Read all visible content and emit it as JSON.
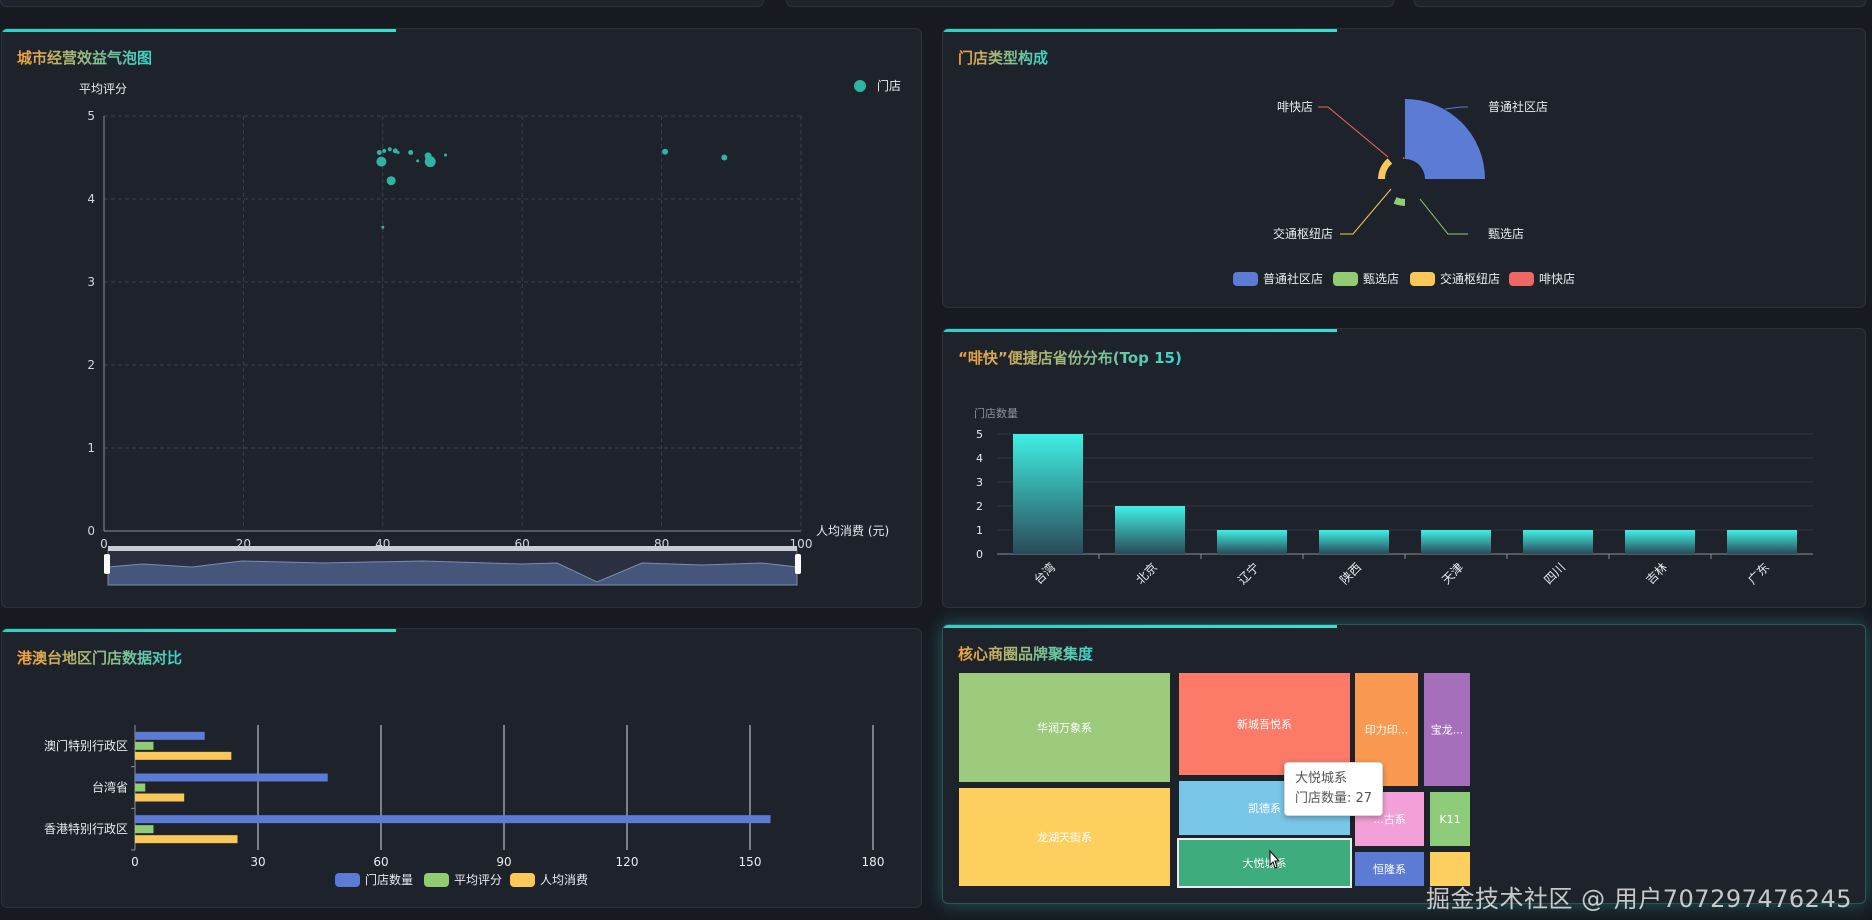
{
  "panels": {
    "bubble": {
      "title": "城市经营效益气泡图"
    },
    "donut": {
      "title": "门店类型构成"
    },
    "bar": {
      "title": "“啡快”便捷店省份分布(Top 15)"
    },
    "hbar": {
      "title": "港澳台地区门店数据对比"
    },
    "treemap": {
      "title": "核心商圈品牌聚集度"
    }
  },
  "colors": {
    "teal": "#2fb4a4",
    "blue": "#5b7bd5",
    "green": "#91cc75",
    "yellow": "#fac858",
    "red": "#ee6666",
    "accent": "#36d6c8"
  },
  "chart_data": [
    {
      "type": "scatter",
      "ylabel": "平均评分",
      "xlabel": "人均消费 (元)",
      "legend": [
        "门店"
      ],
      "legend_position": "top-right",
      "xlim": [
        0,
        100
      ],
      "ylim": [
        0,
        5
      ],
      "xticks": [
        0,
        20,
        40,
        60,
        80,
        100
      ],
      "yticks": [
        0,
        1,
        2,
        3,
        4,
        5
      ],
      "grid": true,
      "points": [
        {
          "x": 39.5,
          "y": 4.56,
          "size": 5
        },
        {
          "x": 40.2,
          "y": 4.58,
          "size": 4
        },
        {
          "x": 39.8,
          "y": 4.45,
          "size": 10
        },
        {
          "x": 41,
          "y": 4.6,
          "size": 4
        },
        {
          "x": 41.8,
          "y": 4.58,
          "size": 5
        },
        {
          "x": 42.2,
          "y": 4.56,
          "size": 3
        },
        {
          "x": 44,
          "y": 4.56,
          "size": 5
        },
        {
          "x": 45,
          "y": 4.46,
          "size": 3
        },
        {
          "x": 46.5,
          "y": 4.52,
          "size": 7
        },
        {
          "x": 46.8,
          "y": 4.45,
          "size": 11
        },
        {
          "x": 49,
          "y": 4.53,
          "size": 3
        },
        {
          "x": 41.2,
          "y": 4.22,
          "size": 9
        },
        {
          "x": 40,
          "y": 3.66,
          "size": 3
        },
        {
          "x": 80.5,
          "y": 4.57,
          "size": 6
        },
        {
          "x": 89,
          "y": 4.5,
          "size": 6
        }
      ]
    },
    {
      "type": "pie",
      "subtype": "rose",
      "slices": [
        {
          "name": "普通社区店",
          "value": 100
        },
        {
          "name": "甄选店",
          "value": 3
        },
        {
          "name": "交通枢纽店",
          "value": 2
        },
        {
          "name": "啡快店",
          "value": 1
        }
      ],
      "legend_position": "bottom"
    },
    {
      "type": "bar",
      "ylabel": "门店数量",
      "ylim": [
        0,
        5
      ],
      "yticks": [
        0,
        1,
        2,
        3,
        4,
        5
      ],
      "categories": [
        "台湾",
        "北京",
        "辽宁",
        "陕西",
        "天津",
        "四川",
        "吉林",
        "广东"
      ],
      "values": [
        5,
        2,
        1,
        1,
        1,
        1,
        1,
        1
      ]
    },
    {
      "type": "bar",
      "orientation": "horizontal",
      "categories": [
        "香港特别行政区",
        "台湾省",
        "澳门特别行政区"
      ],
      "xlim": [
        0,
        180
      ],
      "xticks": [
        0,
        30,
        60,
        90,
        120,
        150,
        180
      ],
      "series": [
        {
          "name": "门店数量",
          "values": [
            155,
            47,
            17
          ]
        },
        {
          "name": "平均评分",
          "values": [
            4.5,
            2.5,
            4.5
          ]
        },
        {
          "name": "人均消费",
          "values": [
            25,
            12,
            23.5
          ]
        }
      ],
      "legend_position": "bottom"
    },
    {
      "type": "treemap",
      "nodes": [
        {
          "name": "华润万象系",
          "color": "#9ccb7d"
        },
        {
          "name": "新城吾悦系",
          "color": "#fb7a68"
        },
        {
          "name": "印力印...",
          "color": "#fa9a52"
        },
        {
          "name": "宝龙...",
          "color": "#a66fbc"
        },
        {
          "name": "凯德系",
          "color": "#79c7e8"
        },
        {
          "name": "...古系",
          "color": "#f3a0d9"
        },
        {
          "name": "K11",
          "color": "#8fcc7a"
        },
        {
          "name": "龙湖天街系",
          "color": "#fccf5f"
        },
        {
          "name": "大悦城系",
          "color": "#3fac7e"
        },
        {
          "name": "恒隆系",
          "color": "#5c7bd4"
        },
        {
          "name": "",
          "color": "#fccf5f"
        }
      ]
    }
  ],
  "tooltip": {
    "title": "大悦城系",
    "line": "门店数量: 27"
  },
  "watermark": "掘金技术社区 @ 用户707297476245"
}
